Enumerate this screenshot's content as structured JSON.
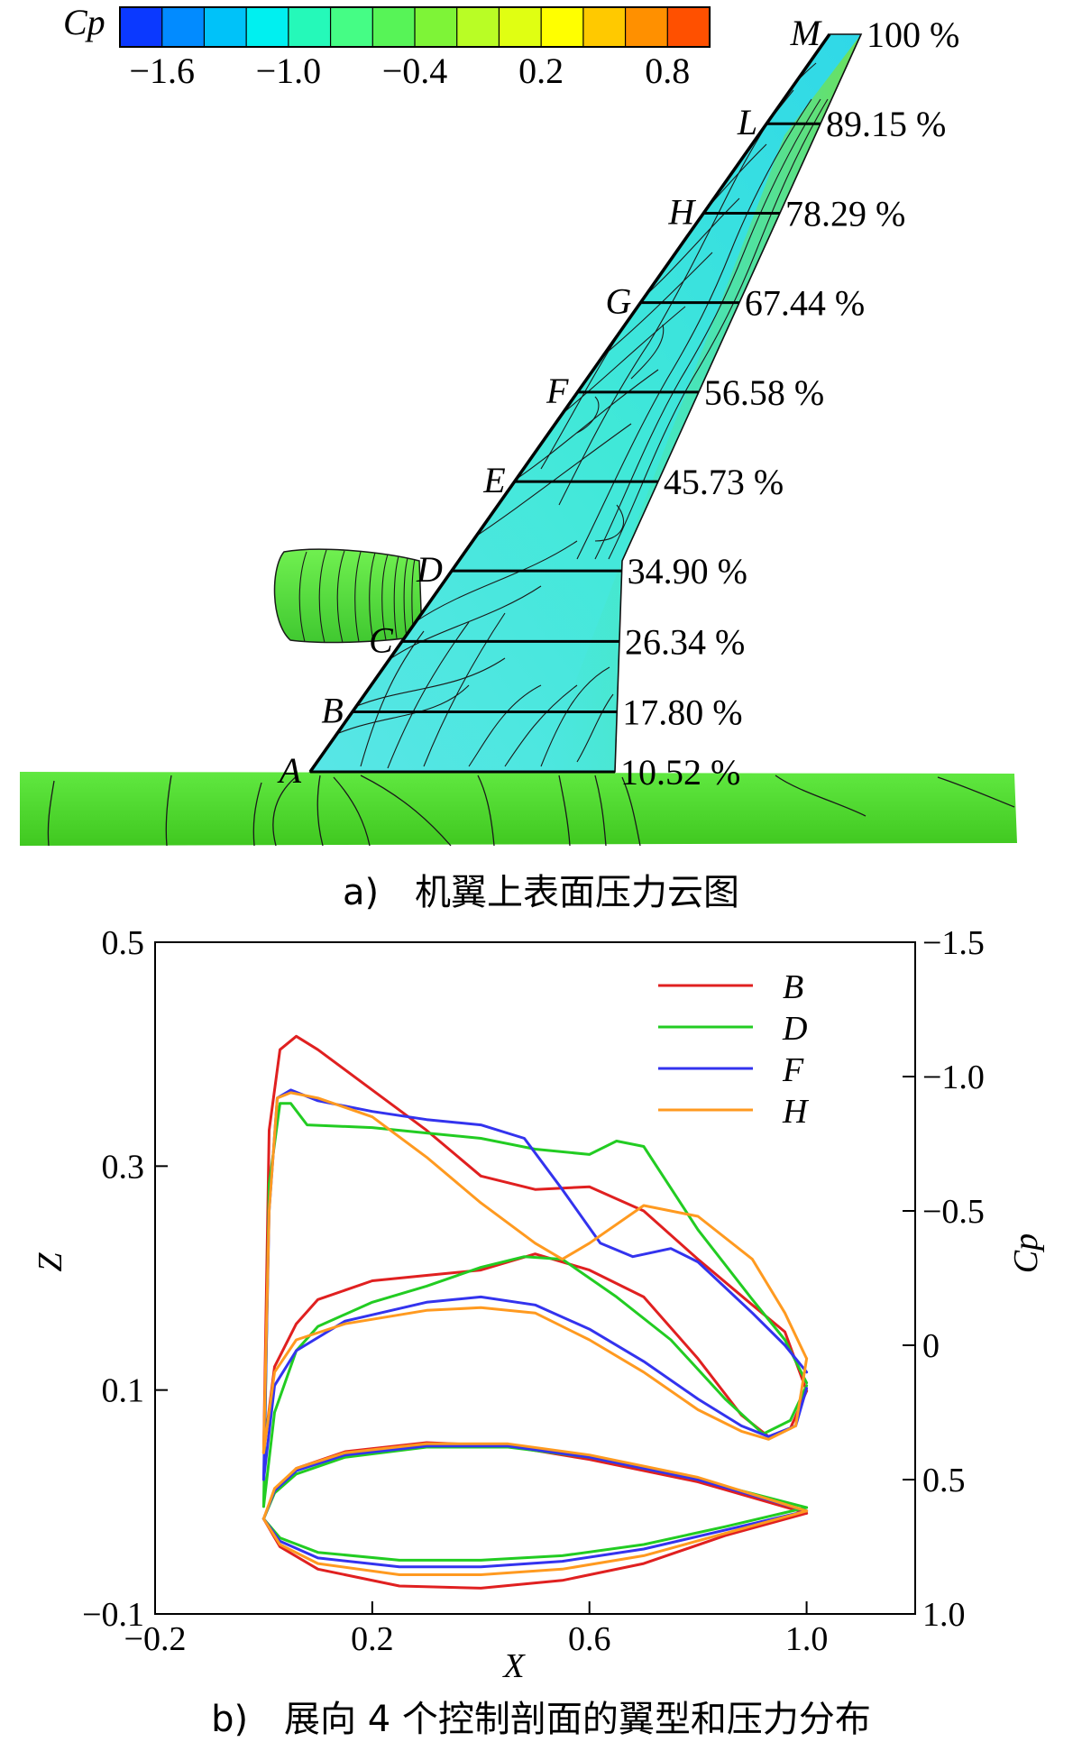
{
  "figure_a": {
    "caption": "a)　机翼上表面压力云图",
    "colorbar": {
      "label": "Cp",
      "tick_labels": [
        "−1.6",
        "−1.0",
        "−0.4",
        "0.2",
        "0.8"
      ],
      "tick_values": [
        -1.6,
        -1.0,
        -0.4,
        0.2,
        0.8
      ],
      "range": [
        -1.8,
        1.0
      ],
      "colors": [
        "#1010ff",
        "#00a0ff",
        "#00f0f0",
        "#40ff90",
        "#60f040",
        "#c8ff20",
        "#ffff00",
        "#ffa000",
        "#ff3000"
      ]
    },
    "sections": [
      {
        "letter": "A",
        "span_label": "10.52 %",
        "span_percent": 10.52
      },
      {
        "letter": "B",
        "span_label": "17.80 %",
        "span_percent": 17.8
      },
      {
        "letter": "C",
        "span_label": "26.34 %",
        "span_percent": 26.34
      },
      {
        "letter": "D",
        "span_label": "34.90 %",
        "span_percent": 34.9
      },
      {
        "letter": "E",
        "span_label": "45.73 %",
        "span_percent": 45.73
      },
      {
        "letter": "F",
        "span_label": "56.58 %",
        "span_percent": 56.58
      },
      {
        "letter": "G",
        "span_label": "67.44 %",
        "span_percent": 67.44
      },
      {
        "letter": "H",
        "span_label": "78.29 %",
        "span_percent": 78.29
      },
      {
        "letter": "L",
        "span_label": "89.15 %",
        "span_percent": 89.15
      },
      {
        "letter": "M",
        "span_label": "100 %",
        "span_percent": 100
      }
    ],
    "colors": {
      "wing": "#40e8d8",
      "fuselage": "#50e030",
      "nacelle": "#58e040",
      "contour": "#1a1a1a"
    }
  },
  "chart_data": {
    "type": "line",
    "caption": "b)　展向 4 个控制剖面的翼型和压力分布",
    "xlabel": "X",
    "ylabel_left": "Z",
    "ylabel_right": "Cp",
    "xlim": [
      -0.2,
      1.2
    ],
    "ylim_left": [
      -0.1,
      0.5
    ],
    "ylim_right": [
      1.0,
      -1.5
    ],
    "x_ticks": [
      -0.2,
      0.2,
      0.6,
      1.0
    ],
    "x_tick_labels": [
      "−0.2",
      "0.2",
      "0.6",
      "1.0"
    ],
    "left_ticks": [
      0.5,
      0.3,
      0.1,
      -0.1
    ],
    "left_tick_labels": [
      "0.5",
      "0.3",
      "0.1",
      "−0.1"
    ],
    "right_ticks": [
      -1.5,
      -1.0,
      -0.5,
      0,
      0.5,
      1.0
    ],
    "right_tick_labels": [
      "−1.5",
      "−1.0",
      "−0.5",
      "0",
      "0.5",
      "1.0"
    ],
    "legend": {
      "placement": "top-right"
    },
    "series": [
      {
        "name": "B",
        "color": "#e02020",
        "cp_upper": [
          [
            0,
            0.4
          ],
          [
            0.01,
            -0.8
          ],
          [
            0.03,
            -1.1
          ],
          [
            0.06,
            -1.15
          ],
          [
            0.1,
            -1.1
          ],
          [
            0.2,
            -0.95
          ],
          [
            0.3,
            -0.8
          ],
          [
            0.4,
            -0.63
          ],
          [
            0.5,
            -0.58
          ],
          [
            0.6,
            -0.59
          ],
          [
            0.7,
            -0.5
          ],
          [
            0.8,
            -0.32
          ],
          [
            0.9,
            -0.15
          ],
          [
            0.96,
            -0.05
          ],
          [
            1.0,
            0.17
          ]
        ],
        "cp_lower": [
          [
            0,
            0.4
          ],
          [
            0.02,
            0.08
          ],
          [
            0.06,
            -0.08
          ],
          [
            0.1,
            -0.17
          ],
          [
            0.2,
            -0.24
          ],
          [
            0.3,
            -0.26
          ],
          [
            0.4,
            -0.28
          ],
          [
            0.5,
            -0.34
          ],
          [
            0.6,
            -0.28
          ],
          [
            0.7,
            -0.18
          ],
          [
            0.8,
            0.05
          ],
          [
            0.88,
            0.26
          ],
          [
            0.93,
            0.34
          ],
          [
            0.97,
            0.31
          ],
          [
            1.0,
            0.17
          ]
        ],
        "z_upper": [
          [
            0,
            -0.015
          ],
          [
            0.02,
            0.01
          ],
          [
            0.06,
            0.03
          ],
          [
            0.15,
            0.045
          ],
          [
            0.3,
            0.053
          ],
          [
            0.45,
            0.05
          ],
          [
            0.6,
            0.038
          ],
          [
            0.8,
            0.018
          ],
          [
            1.0,
            -0.01
          ]
        ],
        "z_lower": [
          [
            0,
            -0.015
          ],
          [
            0.03,
            -0.04
          ],
          [
            0.1,
            -0.06
          ],
          [
            0.25,
            -0.075
          ],
          [
            0.4,
            -0.077
          ],
          [
            0.55,
            -0.07
          ],
          [
            0.7,
            -0.055
          ],
          [
            0.85,
            -0.03
          ],
          [
            1.0,
            -0.01
          ]
        ]
      },
      {
        "name": "D",
        "color": "#22cc22",
        "cp_upper": [
          [
            0,
            0.6
          ],
          [
            0.01,
            -0.6
          ],
          [
            0.03,
            -0.9
          ],
          [
            0.05,
            -0.9
          ],
          [
            0.08,
            -0.82
          ],
          [
            0.2,
            -0.81
          ],
          [
            0.3,
            -0.79
          ],
          [
            0.4,
            -0.77
          ],
          [
            0.5,
            -0.73
          ],
          [
            0.6,
            -0.71
          ],
          [
            0.65,
            -0.76
          ],
          [
            0.7,
            -0.74
          ],
          [
            0.8,
            -0.43
          ],
          [
            0.9,
            -0.17
          ],
          [
            0.96,
            -0.02
          ],
          [
            1.0,
            0.14
          ]
        ],
        "cp_lower": [
          [
            0,
            0.6
          ],
          [
            0.02,
            0.25
          ],
          [
            0.06,
            0.02
          ],
          [
            0.1,
            -0.07
          ],
          [
            0.2,
            -0.16
          ],
          [
            0.3,
            -0.22
          ],
          [
            0.4,
            -0.29
          ],
          [
            0.48,
            -0.33
          ],
          [
            0.55,
            -0.32
          ],
          [
            0.65,
            -0.18
          ],
          [
            0.75,
            -0.02
          ],
          [
            0.85,
            0.2
          ],
          [
            0.92,
            0.33
          ],
          [
            0.97,
            0.28
          ],
          [
            1.0,
            0.15
          ]
        ],
        "z_upper": [
          [
            0,
            -0.015
          ],
          [
            0.02,
            0.008
          ],
          [
            0.06,
            0.025
          ],
          [
            0.15,
            0.04
          ],
          [
            0.3,
            0.049
          ],
          [
            0.45,
            0.049
          ],
          [
            0.6,
            0.04
          ],
          [
            0.8,
            0.02
          ],
          [
            1.0,
            -0.005
          ]
        ],
        "z_lower": [
          [
            0,
            -0.015
          ],
          [
            0.03,
            -0.032
          ],
          [
            0.1,
            -0.045
          ],
          [
            0.25,
            -0.052
          ],
          [
            0.4,
            -0.052
          ],
          [
            0.55,
            -0.048
          ],
          [
            0.7,
            -0.038
          ],
          [
            0.85,
            -0.022
          ],
          [
            1.0,
            -0.005
          ]
        ]
      },
      {
        "name": "F",
        "color": "#3333ee",
        "cp_upper": [
          [
            0,
            0.5
          ],
          [
            0.01,
            -0.5
          ],
          [
            0.025,
            -0.92
          ],
          [
            0.05,
            -0.95
          ],
          [
            0.1,
            -0.91
          ],
          [
            0.2,
            -0.87
          ],
          [
            0.3,
            -0.84
          ],
          [
            0.4,
            -0.82
          ],
          [
            0.48,
            -0.77
          ],
          [
            0.55,
            -0.58
          ],
          [
            0.62,
            -0.38
          ],
          [
            0.68,
            -0.33
          ],
          [
            0.75,
            -0.36
          ],
          [
            0.8,
            -0.31
          ],
          [
            0.9,
            -0.12
          ],
          [
            0.96,
            0
          ],
          [
            1.0,
            0.1
          ]
        ],
        "cp_lower": [
          [
            0,
            0.5
          ],
          [
            0.02,
            0.15
          ],
          [
            0.06,
            0.02
          ],
          [
            0.15,
            -0.09
          ],
          [
            0.3,
            -0.16
          ],
          [
            0.4,
            -0.18
          ],
          [
            0.5,
            -0.15
          ],
          [
            0.6,
            -0.06
          ],
          [
            0.7,
            0.06
          ],
          [
            0.8,
            0.2
          ],
          [
            0.88,
            0.3
          ],
          [
            0.93,
            0.34
          ],
          [
            0.98,
            0.3
          ],
          [
            1.0,
            0.16
          ]
        ],
        "z_upper": [
          [
            0,
            -0.015
          ],
          [
            0.02,
            0.01
          ],
          [
            0.06,
            0.028
          ],
          [
            0.15,
            0.042
          ],
          [
            0.3,
            0.05
          ],
          [
            0.45,
            0.05
          ],
          [
            0.6,
            0.04
          ],
          [
            0.8,
            0.02
          ],
          [
            1.0,
            -0.008
          ]
        ],
        "z_lower": [
          [
            0,
            -0.015
          ],
          [
            0.03,
            -0.035
          ],
          [
            0.1,
            -0.05
          ],
          [
            0.25,
            -0.058
          ],
          [
            0.4,
            -0.058
          ],
          [
            0.55,
            -0.053
          ],
          [
            0.7,
            -0.042
          ],
          [
            0.85,
            -0.025
          ],
          [
            1.0,
            -0.008
          ]
        ]
      },
      {
        "name": "H",
        "color": "#ff9a20",
        "cp_upper": [
          [
            0,
            0.4
          ],
          [
            0.01,
            -0.5
          ],
          [
            0.025,
            -0.92
          ],
          [
            0.05,
            -0.94
          ],
          [
            0.1,
            -0.92
          ],
          [
            0.2,
            -0.85
          ],
          [
            0.3,
            -0.7
          ],
          [
            0.4,
            -0.53
          ],
          [
            0.5,
            -0.38
          ],
          [
            0.55,
            -0.32
          ],
          [
            0.6,
            -0.38
          ],
          [
            0.7,
            -0.52
          ],
          [
            0.8,
            -0.48
          ],
          [
            0.9,
            -0.32
          ],
          [
            0.96,
            -0.12
          ],
          [
            1.0,
            0.05
          ]
        ],
        "cp_lower": [
          [
            0,
            0.4
          ],
          [
            0.02,
            0.1
          ],
          [
            0.06,
            -0.02
          ],
          [
            0.15,
            -0.08
          ],
          [
            0.3,
            -0.13
          ],
          [
            0.4,
            -0.14
          ],
          [
            0.5,
            -0.12
          ],
          [
            0.6,
            -0.02
          ],
          [
            0.7,
            0.1
          ],
          [
            0.8,
            0.24
          ],
          [
            0.88,
            0.32
          ],
          [
            0.93,
            0.35
          ],
          [
            0.98,
            0.3
          ],
          [
            1.0,
            0.05
          ]
        ],
        "z_upper": [
          [
            0,
            -0.015
          ],
          [
            0.02,
            0.012
          ],
          [
            0.06,
            0.03
          ],
          [
            0.15,
            0.044
          ],
          [
            0.3,
            0.052
          ],
          [
            0.45,
            0.052
          ],
          [
            0.6,
            0.042
          ],
          [
            0.8,
            0.022
          ],
          [
            1.0,
            -0.008
          ]
        ],
        "z_lower": [
          [
            0,
            -0.015
          ],
          [
            0.03,
            -0.038
          ],
          [
            0.1,
            -0.055
          ],
          [
            0.25,
            -0.065
          ],
          [
            0.4,
            -0.065
          ],
          [
            0.55,
            -0.06
          ],
          [
            0.7,
            -0.048
          ],
          [
            0.85,
            -0.028
          ],
          [
            1.0,
            -0.008
          ]
        ]
      }
    ]
  }
}
